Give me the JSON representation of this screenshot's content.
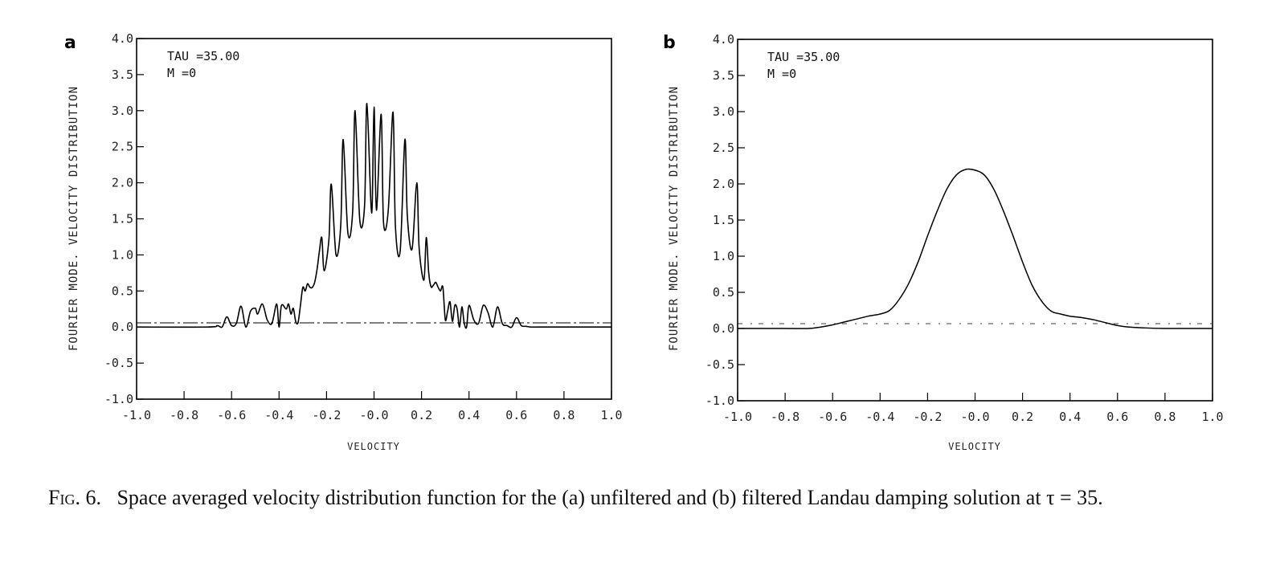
{
  "chart_data": [
    {
      "type": "line",
      "panel": "a",
      "annotations": [
        "TAU =35.00",
        "M =0"
      ],
      "xlabel": "VELOCITY",
      "ylabel": "FOURIER MODE. VELOCITY DISTRIBUTION",
      "xlim": [
        -1.0,
        1.0
      ],
      "ylim": [
        -1.0,
        4.0
      ],
      "xticks": [
        "-1.0",
        "-0.8",
        "-0.6",
        "-0.4",
        "-0.2",
        "-0.0",
        "0.2",
        "0.4",
        "0.6",
        "0.8",
        "1.0"
      ],
      "yticks": [
        "4.0",
        "3.5",
        "3.0",
        "2.5",
        "2.0",
        "1.5",
        "1.0",
        "0.5",
        "0.0",
        "-0.5",
        "-1.0"
      ],
      "grid": false,
      "series": [
        {
          "name": "unfiltered",
          "x": [
            -1.0,
            -0.7,
            -0.66,
            -0.64,
            -0.62,
            -0.6,
            -0.58,
            -0.56,
            -0.54,
            -0.52,
            -0.5,
            -0.49,
            -0.47,
            -0.45,
            -0.43,
            -0.41,
            -0.4,
            -0.39,
            -0.37,
            -0.36,
            -0.35,
            -0.34,
            -0.33,
            -0.32,
            -0.31,
            -0.3,
            -0.29,
            -0.28,
            -0.27,
            -0.26,
            -0.25,
            -0.24,
            -0.23,
            -0.22,
            -0.21,
            -0.19,
            -0.18,
            -0.16,
            -0.14,
            -0.13,
            -0.11,
            -0.09,
            -0.08,
            -0.06,
            -0.04,
            -0.03,
            -0.01,
            0.0,
            0.01,
            0.03,
            0.04,
            0.06,
            0.08,
            0.09,
            0.11,
            0.13,
            0.14,
            0.16,
            0.18,
            0.19,
            0.21,
            0.22,
            0.23,
            0.24,
            0.25,
            0.26,
            0.27,
            0.28,
            0.29,
            0.3,
            0.31,
            0.32,
            0.33,
            0.34,
            0.35,
            0.36,
            0.37,
            0.38,
            0.39,
            0.4,
            0.42,
            0.44,
            0.46,
            0.48,
            0.5,
            0.52,
            0.54,
            0.56,
            0.58,
            0.6,
            0.62,
            0.64,
            0.66,
            0.7,
            1.0
          ],
          "y": [
            0.0,
            0.0,
            0.02,
            0.0,
            0.14,
            0.02,
            0.05,
            0.29,
            0.0,
            0.22,
            0.26,
            0.18,
            0.32,
            0.1,
            0.05,
            0.32,
            0.0,
            0.3,
            0.25,
            0.32,
            0.18,
            0.26,
            0.08,
            0.06,
            0.3,
            0.55,
            0.5,
            0.6,
            0.55,
            0.55,
            0.62,
            0.8,
            1.05,
            1.24,
            0.78,
            1.22,
            1.98,
            1.0,
            1.42,
            2.6,
            1.3,
            1.6,
            3.0,
            1.48,
            1.68,
            3.1,
            1.58,
            3.05,
            1.62,
            2.95,
            1.45,
            1.62,
            2.98,
            1.4,
            1.05,
            2.6,
            1.55,
            1.08,
            2.0,
            1.1,
            0.65,
            1.24,
            0.76,
            0.56,
            0.58,
            0.62,
            0.55,
            0.5,
            0.55,
            0.1,
            0.22,
            0.35,
            0.08,
            0.3,
            0.25,
            0.0,
            0.28,
            0.05,
            0.0,
            0.3,
            0.1,
            0.05,
            0.3,
            0.2,
            0.0,
            0.28,
            0.05,
            0.02,
            0.0,
            0.13,
            0.02,
            0.01,
            0.0,
            0.0,
            0.0
          ]
        }
      ]
    },
    {
      "type": "line",
      "panel": "b",
      "annotations": [
        "TAU =35.00",
        "M =0"
      ],
      "xlabel": "VELOCITY",
      "ylabel": "FOURIER MODE. VELOCITY DISTRIBUTION",
      "xlim": [
        -1.0,
        1.0
      ],
      "ylim": [
        -1.0,
        4.0
      ],
      "xticks": [
        "-1.0",
        "-0.8",
        "-0.6",
        "-0.4",
        "-0.2",
        "-0.0",
        "0.2",
        "0.4",
        "0.6",
        "0.8",
        "1.0"
      ],
      "yticks": [
        "4.0",
        "3.5",
        "3.0",
        "2.5",
        "2.0",
        "1.5",
        "1.0",
        "0.5",
        "0.0",
        "-0.5",
        "-1.0"
      ],
      "grid": false,
      "series": [
        {
          "name": "filtered",
          "x": [
            -1.0,
            -0.8,
            -0.7,
            -0.65,
            -0.6,
            -0.55,
            -0.5,
            -0.45,
            -0.4,
            -0.36,
            -0.32,
            -0.28,
            -0.24,
            -0.2,
            -0.16,
            -0.12,
            -0.08,
            -0.04,
            0.0,
            0.04,
            0.08,
            0.12,
            0.16,
            0.2,
            0.24,
            0.28,
            0.32,
            0.36,
            0.4,
            0.45,
            0.5,
            0.55,
            0.6,
            0.65,
            0.7,
            0.8,
            1.0
          ],
          "y": [
            0.0,
            0.0,
            0.0,
            0.02,
            0.05,
            0.09,
            0.13,
            0.17,
            0.2,
            0.25,
            0.4,
            0.62,
            0.92,
            1.28,
            1.62,
            1.92,
            2.12,
            2.2,
            2.19,
            2.12,
            1.92,
            1.62,
            1.28,
            0.92,
            0.6,
            0.38,
            0.24,
            0.2,
            0.17,
            0.15,
            0.12,
            0.08,
            0.04,
            0.02,
            0.01,
            0.0,
            0.0
          ]
        }
      ]
    }
  ],
  "panels": {
    "a": {
      "letter": "a",
      "tau": "TAU =35.00",
      "m": "M =0"
    },
    "b": {
      "letter": "b",
      "tau": "TAU =35.00",
      "m": "M =0"
    }
  },
  "caption": {
    "fig": "Fig. 6.",
    "text": "Space averaged velocity distribution function for the (a) unfiltered and (b) filtered Landau damping solution at τ = 35."
  }
}
